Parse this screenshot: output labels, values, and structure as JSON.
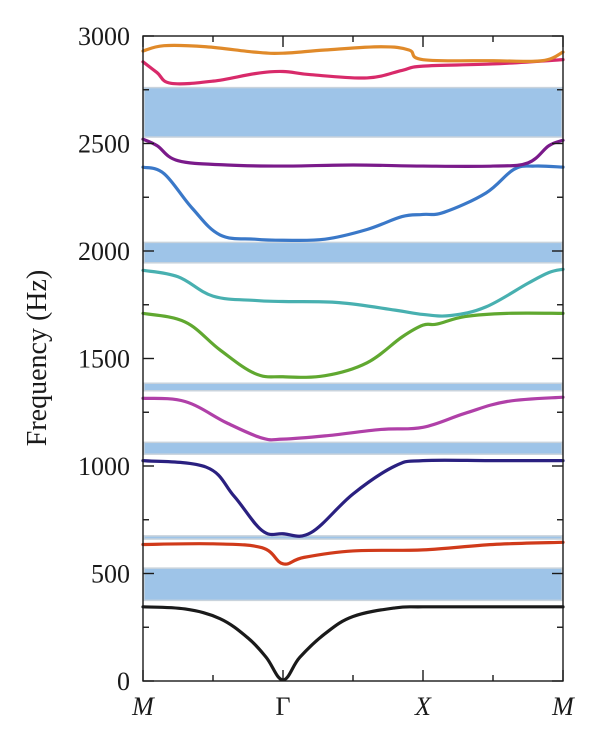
{
  "chart_data": {
    "type": "line",
    "title": "",
    "xlabel": "",
    "ylabel": "Frequency (Hz)",
    "ylim": [
      0,
      3000
    ],
    "xlim": [
      0,
      3
    ],
    "x_ticks": [
      {
        "x": 0,
        "label": "M",
        "italic": true
      },
      {
        "x": 1,
        "label": "Γ",
        "italic": false
      },
      {
        "x": 2,
        "label": "X",
        "italic": true
      },
      {
        "x": 3,
        "label": "M",
        "italic": true
      }
    ],
    "y_ticks": [
      0,
      500,
      1000,
      1500,
      2000,
      2500,
      3000
    ],
    "y_ticks_labels": [
      "0",
      "500",
      "1000",
      "1500",
      "2000",
      "2500",
      "3000"
    ],
    "grid": false,
    "band_gaps": [
      {
        "from": 375,
        "to": 525,
        "color": "#9ec4e8"
      },
      {
        "from": 660,
        "to": 675,
        "color": "#9ec4e8"
      },
      {
        "from": 1055,
        "to": 1110,
        "color": "#9ec4e8"
      },
      {
        "from": 1350,
        "to": 1385,
        "color": "#9ec4e8"
      },
      {
        "from": 1945,
        "to": 2040,
        "color": "#9ec4e8"
      },
      {
        "from": 2530,
        "to": 2760,
        "color": "#9ec4e8"
      }
    ],
    "series": [
      {
        "color": "#1a1a1a",
        "points": [
          [
            0,
            345
          ],
          [
            0.3,
            335
          ],
          [
            0.55,
            290
          ],
          [
            0.75,
            200
          ],
          [
            0.88,
            110
          ],
          [
            1,
            5
          ],
          [
            1.12,
            110
          ],
          [
            1.3,
            220
          ],
          [
            1.5,
            300
          ],
          [
            1.8,
            340
          ],
          [
            2,
            345
          ],
          [
            2.5,
            345
          ],
          [
            3,
            345
          ]
        ]
      },
      {
        "color": "#d03a1a",
        "points": [
          [
            0,
            635
          ],
          [
            0.5,
            638
          ],
          [
            0.85,
            620
          ],
          [
            1,
            545
          ],
          [
            1.15,
            575
          ],
          [
            1.5,
            605
          ],
          [
            2,
            610
          ],
          [
            2.5,
            635
          ],
          [
            3,
            645
          ]
        ]
      },
      {
        "color": "#2a2080",
        "points": [
          [
            0,
            1025
          ],
          [
            0.45,
            995
          ],
          [
            0.65,
            860
          ],
          [
            0.85,
            700
          ],
          [
            1,
            685
          ],
          [
            1.2,
            690
          ],
          [
            1.5,
            870
          ],
          [
            1.8,
            1000
          ],
          [
            2,
            1025
          ],
          [
            2.5,
            1025
          ],
          [
            3,
            1025
          ]
        ]
      },
      {
        "color": "#b040a8",
        "points": [
          [
            0,
            1315
          ],
          [
            0.3,
            1300
          ],
          [
            0.6,
            1200
          ],
          [
            0.85,
            1130
          ],
          [
            1,
            1125
          ],
          [
            1.3,
            1140
          ],
          [
            1.7,
            1170
          ],
          [
            2,
            1180
          ],
          [
            2.3,
            1245
          ],
          [
            2.6,
            1300
          ],
          [
            3,
            1320
          ]
        ]
      },
      {
        "color": "#60a830",
        "points": [
          [
            0,
            1710
          ],
          [
            0.3,
            1670
          ],
          [
            0.55,
            1540
          ],
          [
            0.8,
            1430
          ],
          [
            1,
            1415
          ],
          [
            1.3,
            1420
          ],
          [
            1.6,
            1480
          ],
          [
            1.85,
            1600
          ],
          [
            2,
            1655
          ],
          [
            2.1,
            1660
          ],
          [
            2.3,
            1695
          ],
          [
            2.6,
            1710
          ],
          [
            3,
            1710
          ]
        ]
      },
      {
        "color": "#48b0b0",
        "points": [
          [
            0,
            1910
          ],
          [
            0.25,
            1880
          ],
          [
            0.5,
            1790
          ],
          [
            0.8,
            1770
          ],
          [
            1,
            1765
          ],
          [
            1.4,
            1760
          ],
          [
            1.8,
            1725
          ],
          [
            2,
            1705
          ],
          [
            2.2,
            1700
          ],
          [
            2.45,
            1740
          ],
          [
            2.75,
            1850
          ],
          [
            2.9,
            1900
          ],
          [
            3,
            1915
          ]
        ]
      },
      {
        "color": "#3a78c8",
        "points": [
          [
            0,
            2390
          ],
          [
            0.15,
            2360
          ],
          [
            0.35,
            2200
          ],
          [
            0.55,
            2075
          ],
          [
            0.8,
            2055
          ],
          [
            1,
            2050
          ],
          [
            1.3,
            2055
          ],
          [
            1.6,
            2100
          ],
          [
            1.85,
            2160
          ],
          [
            2,
            2170
          ],
          [
            2.15,
            2180
          ],
          [
            2.45,
            2270
          ],
          [
            2.65,
            2380
          ],
          [
            2.8,
            2395
          ],
          [
            3,
            2390
          ]
        ]
      },
      {
        "color": "#7a1a8a",
        "points": [
          [
            0,
            2520
          ],
          [
            0.1,
            2490
          ],
          [
            0.25,
            2420
          ],
          [
            0.6,
            2400
          ],
          [
            1,
            2395
          ],
          [
            1.5,
            2400
          ],
          [
            2,
            2395
          ],
          [
            2.5,
            2395
          ],
          [
            2.75,
            2410
          ],
          [
            2.9,
            2490
          ],
          [
            3,
            2515
          ]
        ]
      },
      {
        "color": "#d82a6a",
        "points": [
          [
            0,
            2880
          ],
          [
            0.1,
            2830
          ],
          [
            0.2,
            2780
          ],
          [
            0.5,
            2790
          ],
          [
            0.8,
            2825
          ],
          [
            1,
            2835
          ],
          [
            1.2,
            2820
          ],
          [
            1.6,
            2805
          ],
          [
            1.85,
            2840
          ],
          [
            2,
            2860
          ],
          [
            2.5,
            2870
          ],
          [
            3,
            2890
          ]
        ]
      },
      {
        "color": "#e08a2a",
        "points": [
          [
            0,
            2930
          ],
          [
            0.15,
            2955
          ],
          [
            0.45,
            2950
          ],
          [
            0.8,
            2925
          ],
          [
            1,
            2920
          ],
          [
            1.3,
            2935
          ],
          [
            1.7,
            2950
          ],
          [
            1.9,
            2935
          ],
          [
            2,
            2890
          ],
          [
            2.5,
            2885
          ],
          [
            2.85,
            2885
          ],
          [
            3,
            2925
          ]
        ]
      }
    ]
  }
}
